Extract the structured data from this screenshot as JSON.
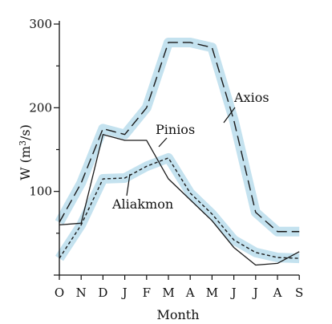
{
  "chart_data": {
    "type": "line",
    "title": "",
    "xlabel": "Month",
    "ylabel_parts": {
      "base": "W (m",
      "sup": "3",
      "tail": "/s)"
    },
    "categories": [
      "O",
      "N",
      "D",
      "J",
      "F",
      "M",
      "A",
      "M",
      "J",
      "J",
      "A",
      "S"
    ],
    "yticks": [
      100,
      200,
      300
    ],
    "ylim": [
      0,
      300
    ],
    "grid": false,
    "band_color": "#c4e2ef",
    "series": [
      {
        "name": "Axios",
        "style": "long-dash",
        "values": [
          63,
          110,
          175,
          168,
          200,
          278,
          278,
          272,
          185,
          75,
          52,
          52
        ]
      },
      {
        "name": "Pinios",
        "style": "solid",
        "values": [
          60,
          62,
          168,
          161,
          161,
          115,
          90,
          65,
          33,
          12,
          14,
          28
        ]
      },
      {
        "name": "Aliakmon",
        "style": "short-dash",
        "values": [
          20,
          60,
          115,
          116,
          130,
          140,
          98,
          73,
          42,
          27,
          21,
          20
        ]
      }
    ]
  }
}
